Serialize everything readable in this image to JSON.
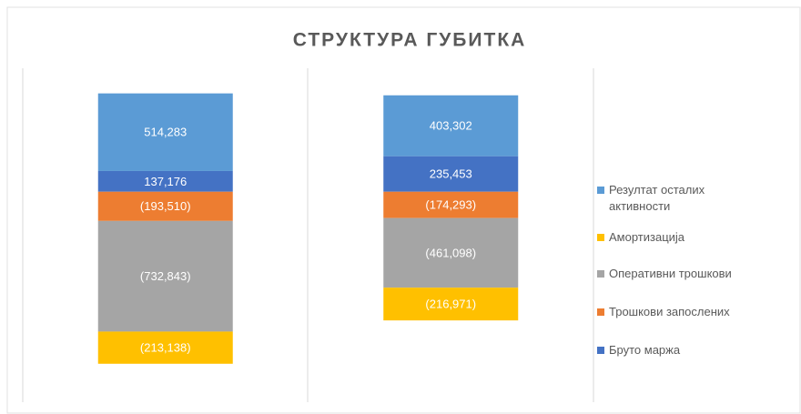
{
  "chart_data": {
    "type": "stacked_bar",
    "title": "СТРУКТУРА ГУБИТКА",
    "categories": [
      null,
      null
    ],
    "ylim": [
      -1400000,
      800000
    ],
    "series": [
      {
        "name": "Бруто маржа",
        "color": "#4472c4",
        "values": [
          137176,
          235453
        ],
        "value_labels": [
          "137,176",
          "235,453"
        ]
      },
      {
        "name": "Трошкови запослених",
        "color": "#ed7d31",
        "values": [
          -193510,
          -174293
        ],
        "value_labels": [
          "(193,510)",
          "(174,293)"
        ]
      },
      {
        "name": "Оперативни трошкови",
        "color": "#a5a5a5",
        "values": [
          -732843,
          -461098
        ],
        "value_labels": [
          "(732,843)",
          "(461,098)"
        ]
      },
      {
        "name": "Амортизација",
        "color": "#ffc000",
        "values": [
          -213138,
          -216971
        ],
        "value_labels": [
          "(213,138)",
          "(216,971)"
        ]
      },
      {
        "name": "Резултат осталих активности",
        "color": "#5b9bd5",
        "values": [
          514283,
          403302
        ],
        "value_labels": [
          "514,283",
          "403,302"
        ]
      }
    ],
    "legend": "right"
  }
}
